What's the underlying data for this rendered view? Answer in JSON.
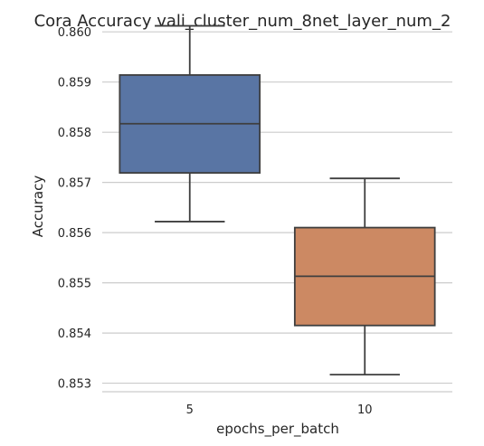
{
  "chart_data": {
    "type": "boxplot",
    "title": "Cora Accuracy vali_cluster_num_8net_layer_num_2",
    "xlabel": "epochs_per_batch",
    "ylabel": "Accuracy",
    "categories": [
      "5",
      "10"
    ],
    "boxes": [
      {
        "category": "5",
        "whisker_low": 0.85622,
        "q1": 0.85719,
        "median": 0.85817,
        "q3": 0.85914,
        "whisker_high": 0.86012,
        "color": "#5975a4"
      },
      {
        "category": "10",
        "whisker_low": 0.85317,
        "q1": 0.85415,
        "median": 0.85513,
        "q3": 0.8561,
        "whisker_high": 0.85708,
        "color": "#cc8963"
      }
    ],
    "yticks": [
      "0.853",
      "0.854",
      "0.855",
      "0.856",
      "0.857",
      "0.858",
      "0.859",
      "0.860"
    ],
    "ytick_values": [
      0.853,
      0.854,
      0.855,
      0.856,
      0.857,
      0.858,
      0.859,
      0.86
    ],
    "ylim": [
      0.85283,
      0.86013
    ],
    "grid": "horizontal",
    "gridline_color": "#cccccc",
    "box_edge_color": "#3f3f3f"
  }
}
